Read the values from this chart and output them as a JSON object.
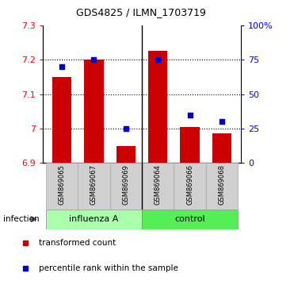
{
  "title": "GDS4825 / ILMN_1703719",
  "samples": [
    "GSM869065",
    "GSM869067",
    "GSM869069",
    "GSM869064",
    "GSM869066",
    "GSM869068"
  ],
  "bar_values": [
    7.15,
    7.2,
    6.95,
    7.225,
    7.005,
    6.985
  ],
  "percentile_values": [
    70,
    75,
    25,
    75,
    35,
    30
  ],
  "bar_color": "#cc0000",
  "percentile_color": "#0000cc",
  "baseline": 6.9,
  "ylim_left": [
    6.9,
    7.3
  ],
  "ylim_right": [
    0,
    100
  ],
  "yticks_left": [
    6.9,
    7.0,
    7.1,
    7.2,
    7.3
  ],
  "ytick_labels_left": [
    "6.9",
    "7",
    "7.1",
    "7.2",
    "7.3"
  ],
  "yticks_right": [
    0,
    25,
    50,
    75,
    100
  ],
  "ytick_labels_right": [
    "0",
    "25",
    "50",
    "75",
    "100%"
  ],
  "group_ranges": [
    [
      -0.5,
      2.5
    ],
    [
      2.5,
      5.5
    ]
  ],
  "group_colors": [
    "#aaffaa",
    "#55ee55"
  ],
  "group_labels": [
    "influenza A",
    "control"
  ],
  "group_label": "infection",
  "legend_labels": [
    "transformed count",
    "percentile rank within the sample"
  ],
  "legend_colors": [
    "#cc0000",
    "#0000cc"
  ],
  "bar_width": 0.6,
  "separator_x": 2.5,
  "gridlines": [
    7.0,
    7.1,
    7.2
  ],
  "xlim": [
    -0.6,
    5.6
  ]
}
